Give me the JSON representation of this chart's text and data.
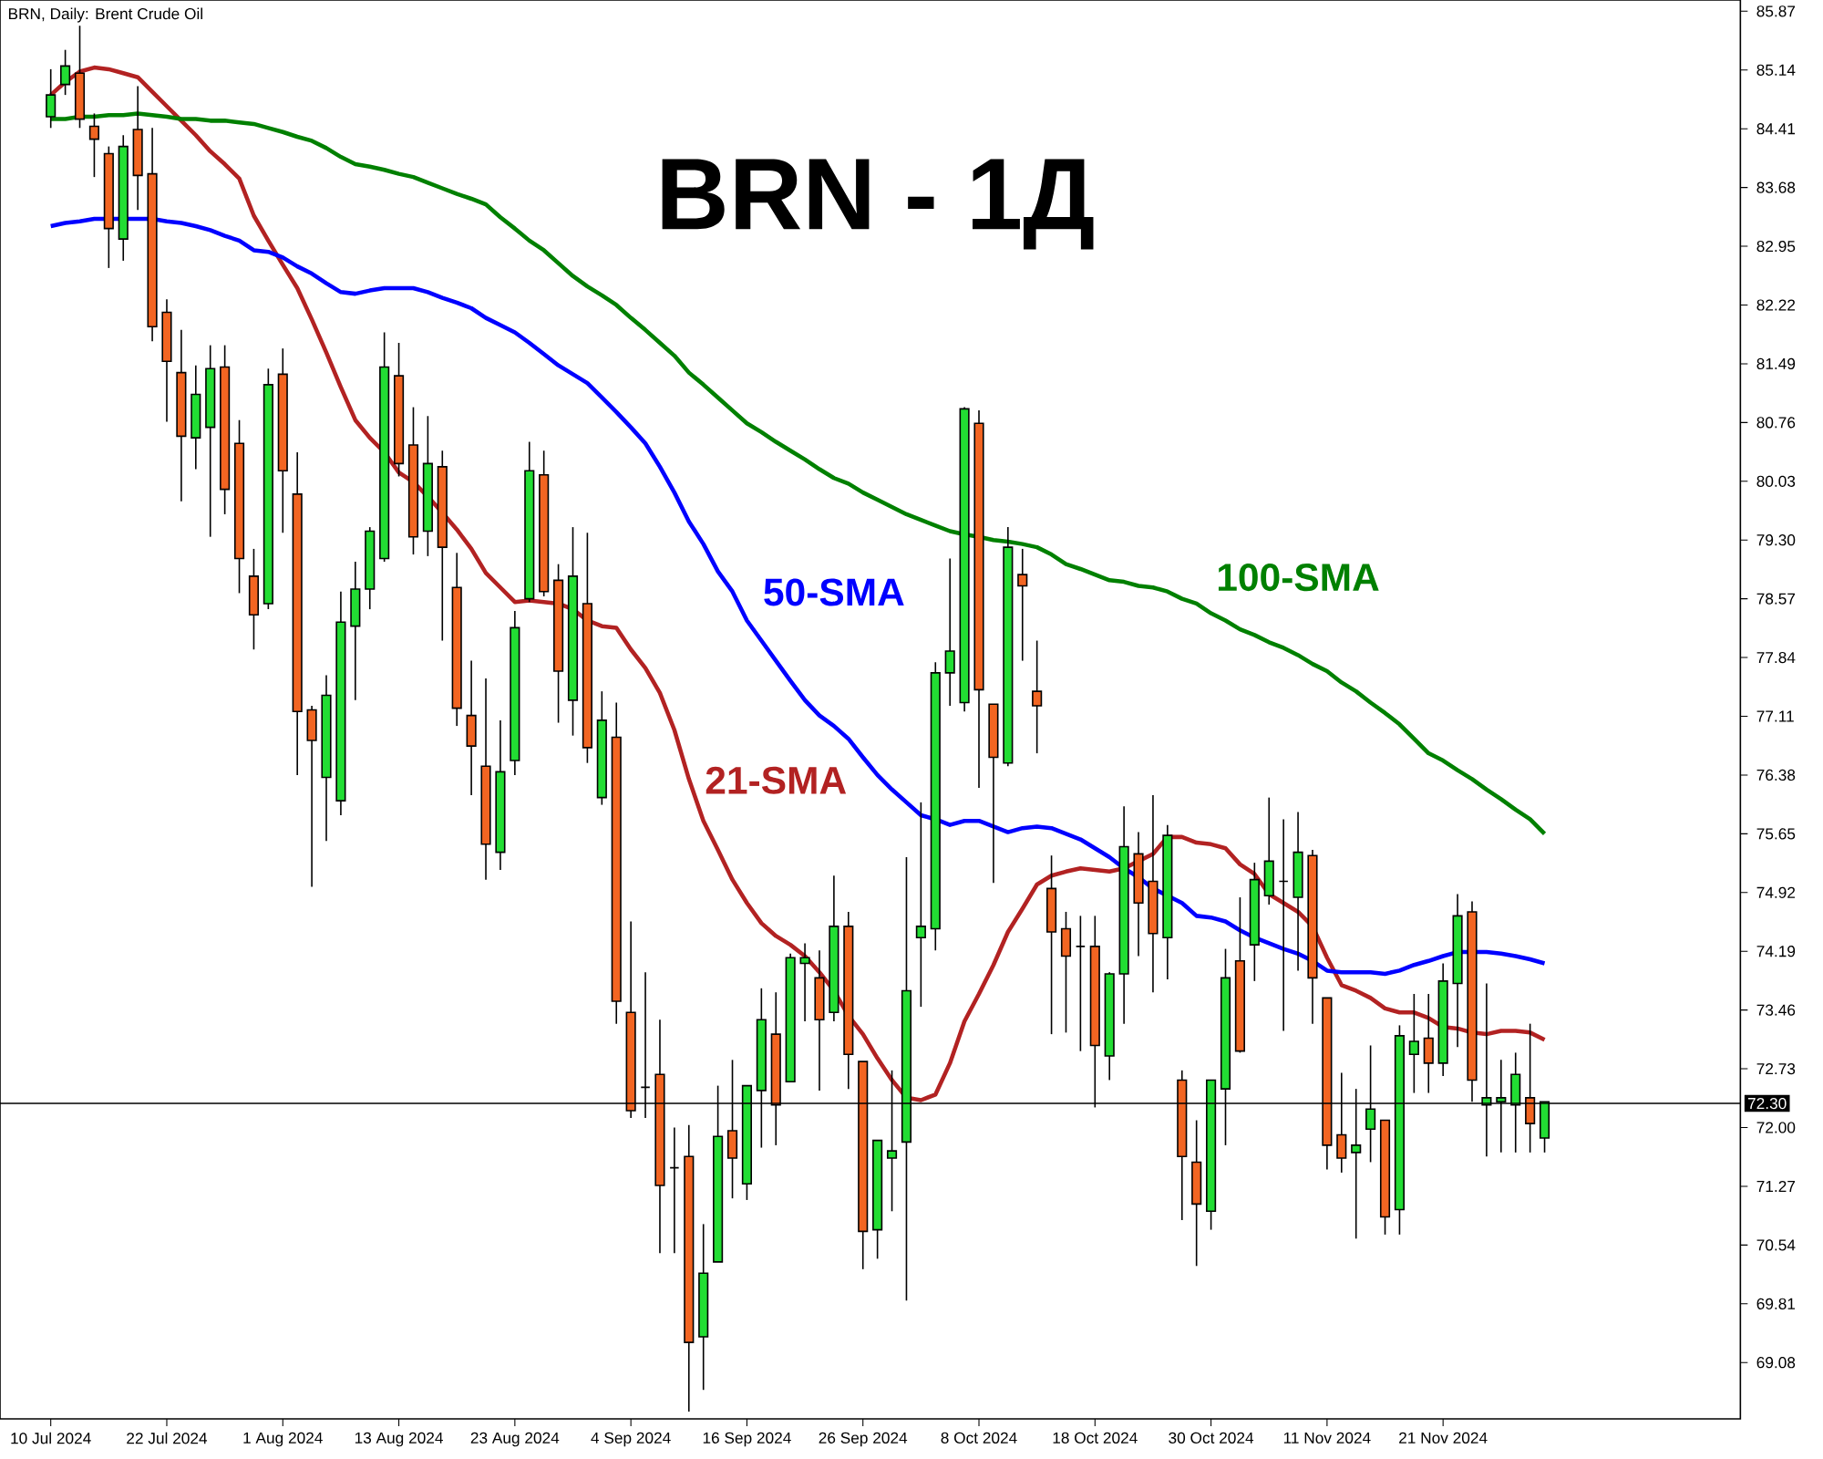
{
  "chart_data": {
    "type": "candlestick",
    "title": "BRN - 1Д",
    "subtitle": "BRN, Daily: Brent Crude Oil",
    "categories": [
      "10 Jul 2024",
      null,
      null,
      null,
      null,
      null,
      null,
      null,
      "22 Jul 2024",
      null,
      null,
      null,
      null,
      null,
      null,
      null,
      "1 Aug 2024",
      null,
      null,
      null,
      null,
      null,
      null,
      null,
      "13 Aug 2024",
      null,
      null,
      null,
      null,
      null,
      null,
      null,
      "23 Aug 2024",
      null,
      null,
      null,
      null,
      null,
      null,
      null,
      "4 Sep 2024",
      null,
      null,
      null,
      null,
      null,
      null,
      null,
      "16 Sep 2024",
      null,
      null,
      null,
      null,
      null,
      null,
      null,
      "26 Sep 2024",
      null,
      null,
      null,
      null,
      null,
      null,
      null,
      "8 Oct 2024",
      null,
      null,
      null,
      null,
      null,
      null,
      null,
      "18 Oct 2024",
      null,
      null,
      null,
      null,
      null,
      null,
      null,
      "30 Oct 2024",
      null,
      null,
      null,
      null,
      null,
      null,
      null,
      "11 Nov 2024",
      null,
      null,
      null,
      null,
      null,
      null,
      null,
      "21 Nov 2024",
      null,
      null,
      null,
      null,
      null,
      null,
      null
    ],
    "ohlc": [
      [
        84.56,
        85.15,
        84.42,
        84.83
      ],
      [
        84.96,
        85.39,
        84.83,
        85.19
      ],
      [
        85.1,
        85.69,
        84.42,
        84.53
      ],
      [
        84.44,
        84.6,
        83.81,
        84.28
      ],
      [
        84.1,
        84.19,
        82.68,
        83.17
      ],
      [
        83.04,
        84.33,
        82.77,
        84.19
      ],
      [
        84.4,
        84.94,
        83.4,
        83.83
      ],
      [
        83.85,
        84.42,
        81.77,
        81.95
      ],
      [
        82.13,
        82.29,
        80.77,
        81.52
      ],
      [
        81.38,
        81.91,
        79.78,
        80.59
      ],
      [
        80.57,
        81.47,
        80.18,
        81.11
      ],
      [
        80.7,
        81.72,
        79.34,
        81.43
      ],
      [
        81.45,
        81.72,
        79.62,
        79.93
      ],
      [
        80.5,
        80.79,
        78.64,
        79.07
      ],
      [
        78.85,
        79.19,
        77.94,
        78.37
      ],
      [
        78.51,
        81.43,
        78.44,
        81.23
      ],
      [
        81.36,
        81.68,
        79.39,
        80.16
      ],
      [
        79.87,
        80.39,
        76.38,
        77.17
      ],
      [
        77.19,
        77.24,
        74.99,
        76.81
      ],
      [
        76.35,
        77.62,
        75.56,
        77.37
      ],
      [
        76.06,
        78.66,
        75.88,
        78.28
      ],
      [
        78.23,
        79.03,
        77.31,
        78.69
      ],
      [
        78.69,
        79.46,
        78.44,
        79.41
      ],
      [
        79.07,
        81.88,
        79.03,
        81.45
      ],
      [
        81.34,
        81.75,
        80.09,
        80.25
      ],
      [
        80.48,
        80.95,
        79.12,
        79.34
      ],
      [
        79.41,
        80.84,
        79.1,
        80.25
      ],
      [
        80.21,
        80.41,
        78.05,
        79.21
      ],
      [
        78.71,
        79.14,
        76.99,
        77.21
      ],
      [
        77.12,
        77.8,
        76.13,
        76.74
      ],
      [
        76.49,
        77.58,
        75.08,
        75.52
      ],
      [
        75.42,
        77.06,
        75.2,
        76.42
      ],
      [
        76.56,
        78.42,
        76.38,
        78.21
      ],
      [
        78.57,
        80.52,
        78.53,
        80.16
      ],
      [
        80.11,
        80.41,
        78.6,
        78.66
      ],
      [
        78.8,
        79.0,
        77.03,
        77.67
      ],
      [
        77.31,
        79.46,
        76.87,
        78.85
      ],
      [
        78.51,
        79.39,
        76.53,
        76.72
      ],
      [
        76.1,
        77.42,
        76.01,
        77.06
      ],
      [
        76.85,
        77.28,
        73.29,
        73.57
      ],
      [
        73.43,
        74.56,
        72.12,
        72.21
      ],
      [
        72.5,
        73.93,
        72.12,
        72.5
      ],
      [
        72.66,
        73.34,
        70.44,
        71.28
      ],
      [
        71.5,
        72.0,
        70.44,
        71.5
      ],
      [
        71.64,
        72.03,
        68.47,
        69.33
      ],
      [
        69.4,
        70.8,
        68.74,
        70.19
      ],
      [
        70.33,
        72.52,
        70.33,
        71.89
      ],
      [
        71.96,
        72.84,
        71.12,
        71.62
      ],
      [
        71.3,
        72.52,
        71.1,
        72.52
      ],
      [
        72.46,
        73.73,
        71.75,
        73.34
      ],
      [
        73.16,
        73.68,
        71.78,
        72.28
      ],
      [
        72.57,
        74.16,
        72.57,
        74.11
      ],
      [
        74.04,
        74.29,
        73.32,
        74.11
      ],
      [
        73.86,
        74.2,
        72.46,
        73.34
      ],
      [
        73.43,
        75.13,
        73.32,
        74.5
      ],
      [
        74.5,
        74.68,
        72.48,
        72.91
      ],
      [
        72.82,
        72.82,
        70.24,
        70.71
      ],
      [
        70.73,
        71.84,
        70.37,
        71.84
      ],
      [
        71.62,
        72.71,
        70.96,
        71.71
      ],
      [
        71.82,
        75.36,
        69.85,
        73.7
      ],
      [
        74.36,
        76.04,
        73.5,
        74.5
      ],
      [
        74.47,
        77.78,
        74.2,
        77.65
      ],
      [
        77.65,
        79.07,
        77.24,
        77.92
      ],
      [
        77.28,
        80.95,
        77.17,
        80.93
      ],
      [
        80.75,
        80.91,
        76.22,
        77.44
      ],
      [
        77.26,
        77.26,
        75.04,
        76.6
      ],
      [
        76.53,
        79.46,
        76.49,
        79.21
      ],
      [
        78.87,
        79.19,
        77.8,
        78.73
      ],
      [
        77.42,
        78.05,
        76.65,
        77.24
      ],
      [
        74.97,
        75.38,
        73.16,
        74.43
      ],
      [
        74.47,
        74.68,
        73.18,
        74.13
      ],
      [
        74.25,
        74.63,
        72.95,
        74.25
      ],
      [
        74.25,
        74.63,
        72.25,
        73.02
      ],
      [
        72.89,
        73.93,
        72.59,
        73.91
      ],
      [
        73.91,
        75.99,
        73.29,
        75.49
      ],
      [
        75.4,
        75.67,
        74.13,
        74.79
      ],
      [
        75.06,
        76.13,
        73.68,
        74.41
      ],
      [
        74.36,
        75.76,
        73.84,
        75.63
      ],
      [
        72.59,
        72.71,
        70.85,
        71.64
      ],
      [
        71.57,
        72.09,
        70.28,
        71.05
      ],
      [
        70.96,
        72.59,
        70.73,
        72.59
      ],
      [
        72.48,
        74.22,
        71.78,
        73.86
      ],
      [
        74.07,
        74.86,
        72.93,
        72.95
      ],
      [
        74.27,
        75.29,
        73.82,
        75.08
      ],
      [
        74.88,
        76.1,
        74.77,
        75.31
      ],
      [
        75.06,
        75.83,
        73.2,
        75.06
      ],
      [
        74.86,
        75.92,
        73.95,
        75.42
      ],
      [
        75.38,
        75.45,
        73.29,
        73.86
      ],
      [
        73.61,
        73.61,
        71.48,
        71.78
      ],
      [
        71.91,
        72.68,
        71.44,
        71.62
      ],
      [
        71.69,
        72.48,
        70.62,
        71.78
      ],
      [
        71.98,
        73.02,
        71.57,
        72.23
      ],
      [
        72.09,
        72.09,
        70.67,
        70.89
      ],
      [
        70.98,
        73.27,
        70.67,
        73.14
      ],
      [
        72.91,
        73.66,
        72.43,
        73.07
      ],
      [
        73.11,
        73.66,
        72.43,
        72.8
      ],
      [
        72.8,
        74.04,
        72.64,
        73.82
      ],
      [
        73.79,
        74.9,
        73.0,
        74.63
      ],
      [
        74.68,
        74.81,
        72.32,
        72.59
      ],
      [
        72.28,
        73.79,
        71.64,
        72.37
      ],
      [
        72.32,
        72.84,
        71.69,
        72.37
      ],
      [
        72.28,
        72.93,
        71.69,
        72.66
      ],
      [
        72.37,
        73.29,
        71.69,
        72.05
      ],
      [
        71.87,
        72.32,
        71.69,
        72.32
      ]
    ],
    "colors": [
      "#22dd33",
      "#22dd33",
      "#f26522",
      "#f26522",
      "#f26522",
      "#22dd33",
      "#f26522",
      "#f26522",
      "#f26522",
      "#f26522",
      "#22dd33",
      "#22dd33",
      "#f26522",
      "#f26522",
      "#f26522",
      "#22dd33",
      "#f26522",
      "#f26522",
      "#f26522",
      "#22dd33",
      "#22dd33",
      "#22dd33",
      "#22dd33",
      "#22dd33",
      "#f26522",
      "#f26522",
      "#22dd33",
      "#f26522",
      "#f26522",
      "#f26522",
      "#f26522",
      "#22dd33",
      "#22dd33",
      "#22dd33",
      "#f26522",
      "#f26522",
      "#22dd33",
      "#f26522",
      "#22dd33",
      "#f26522",
      "#f26522",
      "#000000",
      "#f26522",
      "#000000",
      "#f26522",
      "#22dd33",
      "#22dd33",
      "#f26522",
      "#22dd33",
      "#22dd33",
      "#f26522",
      "#22dd33",
      "#22dd33",
      "#f26522",
      "#22dd33",
      "#f26522",
      "#f26522",
      "#22dd33",
      "#22dd33",
      "#22dd33",
      "#22dd33",
      "#22dd33",
      "#22dd33",
      "#22dd33",
      "#f26522",
      "#f26522",
      "#22dd33",
      "#f26522",
      "#f26522",
      "#f26522",
      "#f26522",
      "#000000",
      "#f26522",
      "#22dd33",
      "#22dd33",
      "#f26522",
      "#f26522",
      "#22dd33",
      "#f26522",
      "#f26522",
      "#22dd33",
      "#22dd33",
      "#f26522",
      "#22dd33",
      "#22dd33",
      "#000000",
      "#22dd33",
      "#f26522",
      "#f26522",
      "#f26522",
      "#22dd33",
      "#22dd33",
      "#f26522",
      "#22dd33",
      "#22dd33",
      "#f26522",
      "#22dd33",
      "#22dd33",
      "#f26522",
      "#22dd33",
      "#22dd33",
      "#22dd33",
      "#f26522",
      "#22dd33"
    ],
    "series": [
      {
        "type": "line",
        "name": "21-SMA",
        "color": "#b22222",
        "values": [
          84.83,
          84.99,
          85.12,
          85.17,
          85.15,
          85.1,
          85.05,
          84.87,
          84.69,
          84.51,
          84.33,
          84.13,
          83.97,
          83.79,
          83.33,
          83.02,
          82.72,
          82.43,
          82.04,
          81.63,
          81.2,
          80.79,
          80.57,
          80.39,
          80.14,
          80.02,
          79.84,
          79.64,
          79.43,
          79.19,
          78.89,
          78.71,
          78.53,
          78.55,
          78.53,
          78.51,
          78.44,
          78.3,
          78.23,
          78.21,
          77.94,
          77.71,
          77.4,
          76.94,
          76.33,
          75.81,
          75.45,
          75.08,
          74.79,
          74.54,
          74.38,
          74.27,
          74.13,
          73.93,
          73.7,
          73.39,
          73.16,
          72.86,
          72.59,
          72.37,
          72.34,
          72.41,
          72.8,
          73.32,
          73.66,
          74.02,
          74.43,
          74.72,
          75.02,
          75.13,
          75.18,
          75.22,
          75.2,
          75.18,
          75.22,
          75.31,
          75.4,
          75.61,
          75.61,
          75.54,
          75.52,
          75.47,
          75.27,
          75.15,
          74.9,
          74.79,
          74.68,
          74.5,
          74.11,
          73.77,
          73.7,
          73.61,
          73.48,
          73.43,
          73.43,
          73.36,
          73.25,
          73.23,
          73.18,
          73.16,
          73.2,
          73.2,
          73.18,
          73.09
        ]
      },
      {
        "type": "line",
        "name": "50-SMA",
        "color": "#0000ff",
        "values": [
          83.2,
          83.24,
          83.26,
          83.29,
          83.29,
          83.29,
          83.29,
          83.29,
          83.26,
          83.24,
          83.2,
          83.15,
          83.08,
          83.02,
          82.9,
          82.88,
          82.81,
          82.7,
          82.61,
          82.49,
          82.38,
          82.36,
          82.4,
          82.43,
          82.43,
          82.43,
          82.38,
          82.31,
          82.25,
          82.18,
          82.06,
          81.97,
          81.88,
          81.75,
          81.61,
          81.47,
          81.36,
          81.25,
          81.07,
          80.89,
          80.7,
          80.5,
          80.21,
          79.89,
          79.53,
          79.25,
          78.91,
          78.66,
          78.3,
          78.05,
          77.8,
          77.55,
          77.31,
          77.12,
          76.99,
          76.83,
          76.6,
          76.38,
          76.2,
          76.04,
          75.88,
          75.83,
          75.76,
          75.81,
          75.81,
          75.74,
          75.67,
          75.72,
          75.74,
          75.72,
          75.65,
          75.58,
          75.47,
          75.36,
          75.22,
          75.11,
          74.97,
          74.88,
          74.79,
          74.63,
          74.61,
          74.56,
          74.45,
          74.36,
          74.29,
          74.22,
          74.16,
          74.07,
          73.95,
          73.93,
          73.93,
          73.93,
          73.91,
          73.95,
          74.02,
          74.07,
          74.13,
          74.18,
          74.18,
          74.18,
          74.16,
          74.13,
          74.09,
          74.04
        ]
      },
      {
        "type": "line",
        "name": "100-SMA",
        "color": "#008000",
        "values": [
          84.53,
          84.53,
          84.56,
          84.56,
          84.58,
          84.58,
          84.6,
          84.58,
          84.56,
          84.53,
          84.53,
          84.51,
          84.51,
          84.49,
          84.47,
          84.42,
          84.37,
          84.31,
          84.26,
          84.17,
          84.06,
          83.97,
          83.94,
          83.9,
          83.85,
          83.81,
          83.74,
          83.67,
          83.6,
          83.54,
          83.47,
          83.31,
          83.17,
          83.02,
          82.9,
          82.74,
          82.58,
          82.45,
          82.34,
          82.22,
          82.06,
          81.91,
          81.75,
          81.59,
          81.38,
          81.23,
          81.07,
          80.91,
          80.75,
          80.64,
          80.52,
          80.41,
          80.3,
          80.18,
          80.07,
          80.0,
          79.89,
          79.8,
          79.71,
          79.62,
          79.55,
          79.48,
          79.41,
          79.37,
          79.34,
          79.3,
          79.28,
          79.25,
          79.21,
          79.12,
          79.0,
          78.94,
          78.87,
          78.8,
          78.78,
          78.73,
          78.71,
          78.66,
          78.57,
          78.51,
          78.39,
          78.3,
          78.19,
          78.12,
          78.03,
          77.96,
          77.87,
          77.76,
          77.67,
          77.53,
          77.42,
          77.28,
          77.15,
          77.01,
          76.83,
          76.65,
          76.56,
          76.44,
          76.33,
          76.2,
          76.08,
          75.95,
          75.83,
          75.65
        ]
      }
    ],
    "ylim": [
      68.38,
      86.01
    ],
    "yticks": [
      69.08,
      69.81,
      70.54,
      71.27,
      {
        "value": 72,
        "label": "72.00"
      },
      72.73,
      73.46,
      74.19,
      74.92,
      75.65,
      76.38,
      77.11,
      77.84,
      78.57,
      {
        "value": 79.3,
        "label": "79.30"
      },
      80.03,
      80.76,
      81.49,
      82.22,
      82.95,
      83.68,
      84.41,
      85.14,
      85.87
    ],
    "ref_lines": [
      {
        "axis": "y",
        "value": 72.3,
        "label": "72.30",
        "color": "#000000",
        "line_style": "solid"
      }
    ]
  }
}
